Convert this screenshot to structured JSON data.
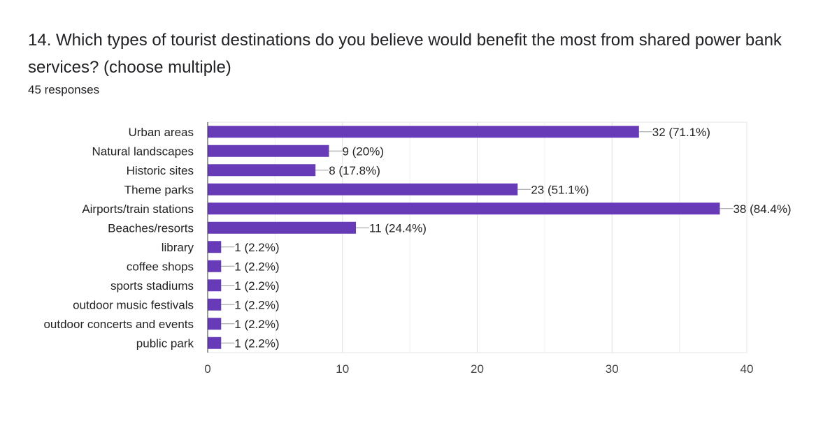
{
  "title": "14. Which types of tourist destinations do you believe would benefit the most from shared power bank services? (choose multiple)",
  "responses": "45 responses",
  "chart_data": {
    "type": "bar",
    "orientation": "horizontal",
    "categories": [
      "Urban areas",
      "Natural landscapes",
      "Historic sites",
      "Theme parks",
      "Airports/train stations",
      "Beaches/resorts",
      "library",
      "coffee shops",
      "sports stadiums",
      "outdoor music festivals",
      "outdoor concerts and events",
      "public park"
    ],
    "values": [
      32,
      9,
      8,
      23,
      38,
      11,
      1,
      1,
      1,
      1,
      1,
      1
    ],
    "data_labels": [
      "32 (71.1%)",
      "9 (20%)",
      "8 (17.8%)",
      "23 (51.1%)",
      "38 (84.4%)",
      "11 (24.4%)",
      "1 (2.2%)",
      "1 (2.2%)",
      "1 (2.2%)",
      "1 (2.2%)",
      "1 (2.2%)",
      "1 (2.2%)"
    ],
    "xlim": [
      0,
      40
    ],
    "xticks": [
      0,
      10,
      20,
      30,
      40
    ],
    "grid": true,
    "bar_color": "#673ab7"
  }
}
